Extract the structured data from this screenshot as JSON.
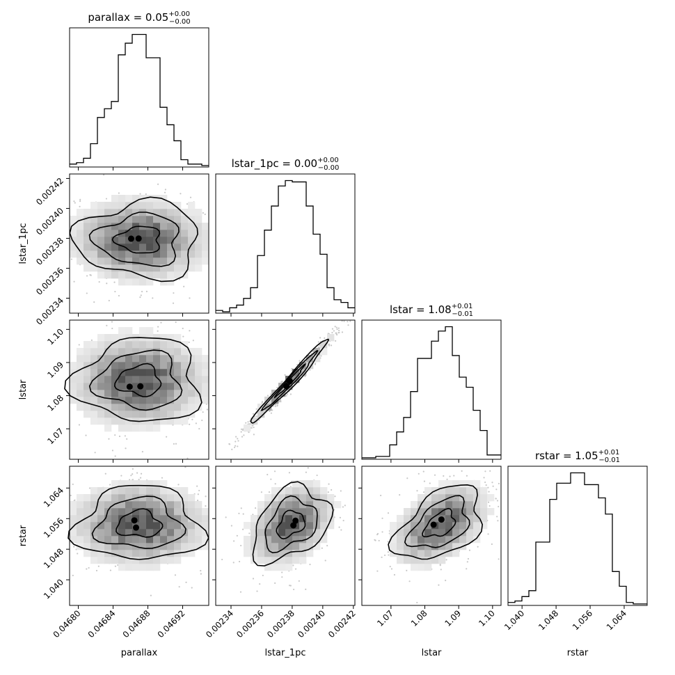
{
  "figure": {
    "type": "corner_plot",
    "grid": false,
    "colors": {
      "line": "#000000",
      "background": "#ffffff",
      "density": "#000000"
    }
  },
  "chart_data": [
    {
      "id": "hist-parallax",
      "type": "histogram",
      "variable": "parallax",
      "title_main": "parallax = 0.05",
      "title_sup": "+0.00",
      "title_sub": "−0.00",
      "xlim": [
        0.04679,
        0.04695
      ],
      "xticks": [
        0.0468,
        0.04684,
        0.04688,
        0.04692
      ],
      "xtick_labels": [
        "0.04680",
        "0.04684",
        "0.04688",
        "0.04692"
      ],
      "bins": [
        0.04679,
        0.046798,
        0.046806,
        0.046814,
        0.046822,
        0.04683,
        0.046838,
        0.046846,
        0.046854,
        0.046862,
        0.04687,
        0.046878,
        0.046886,
        0.046894,
        0.046902,
        0.04691,
        0.046918,
        0.046926,
        0.046934,
        0.046942,
        0.04695
      ],
      "counts": [
        2,
        3,
        6,
        16,
        34,
        40,
        45,
        77,
        85,
        91,
        91,
        75,
        75,
        41,
        29,
        18,
        5,
        2,
        2,
        1
      ]
    },
    {
      "id": "hist-lstar_1pc",
      "type": "histogram",
      "variable": "lstar_1pc",
      "title_main": "lstar_1pc = 0.00",
      "title_sup": "+0.00",
      "title_sub": "−0.00",
      "xlim": [
        0.00233,
        0.002421
      ],
      "xticks": [
        0.00234,
        0.00236,
        0.00238,
        0.0024,
        0.00242
      ],
      "xtick_labels": [
        "0.00234",
        "0.00236",
        "0.00238",
        "0.00240",
        "0.00242"
      ],
      "bins": [
        0.00233,
        0.00233455,
        0.0023391,
        0.00234365,
        0.0023482,
        0.00235275,
        0.0023573,
        0.00236185,
        0.0023664,
        0.00237095,
        0.0023755,
        0.00238005,
        0.0023846,
        0.00238915,
        0.0023937,
        0.00239825,
        0.0024028,
        0.00240735,
        0.0024119,
        0.00241645,
        0.002421
      ],
      "counts": [
        2,
        1,
        4,
        6,
        11,
        19,
        43,
        62,
        80,
        95,
        99,
        98,
        98,
        80,
        59,
        44,
        19,
        10,
        8,
        4
      ]
    },
    {
      "id": "hist-lstar",
      "type": "histogram",
      "variable": "lstar",
      "title_main": "lstar = 1.08",
      "title_sup": "+0.01",
      "title_sub": "−0.01",
      "xlim": [
        1.0614,
        1.1025
      ],
      "xticks": [
        1.07,
        1.08,
        1.09,
        1.1
      ],
      "xtick_labels": [
        "1.07",
        "1.08",
        "1.09",
        "1.10"
      ],
      "bins": [
        1.0614,
        1.063455,
        1.06551,
        1.067565,
        1.06962,
        1.071675,
        1.07373,
        1.075785,
        1.07784,
        1.079895,
        1.08195,
        1.084005,
        1.08606,
        1.088115,
        1.09017,
        1.092225,
        1.09428,
        1.096335,
        1.09839,
        1.100445,
        1.1025
      ],
      "counts": [
        1,
        1,
        2,
        2,
        10,
        19,
        29,
        47,
        70,
        70,
        82,
        89,
        92,
        72,
        57,
        50,
        34,
        20,
        3,
        3
      ]
    },
    {
      "id": "hist-rstar",
      "type": "histogram",
      "variable": "rstar",
      "title_main": "rstar = 1.05",
      "title_sup": "+0.01",
      "title_sub": "−0.01",
      "xlim": [
        1.0367,
        1.0694
      ],
      "xticks": [
        1.04,
        1.048,
        1.056,
        1.064
      ],
      "xtick_labels": [
        "1.040",
        "1.048",
        "1.056",
        "1.064"
      ],
      "bins": [
        1.0367,
        1.038335,
        1.03997,
        1.041605,
        1.04324,
        1.044875,
        1.04651,
        1.048145,
        1.04978,
        1.051415,
        1.05305,
        1.054685,
        1.05632,
        1.057955,
        1.05959,
        1.061225,
        1.06286,
        1.064495,
        1.06613,
        1.067765,
        1.0694
      ],
      "counts": [
        2,
        3,
        6,
        10,
        43,
        43,
        72,
        83,
        83,
        90,
        90,
        82,
        82,
        73,
        62,
        23,
        13,
        2,
        1,
        1
      ]
    },
    {
      "id": "joint-parallax-lstar_1pc",
      "type": "contour_density",
      "x_variable": "parallax",
      "y_variable": "lstar_1pc",
      "xlim": [
        0.04679,
        0.04695
      ],
      "ylim": [
        0.00233,
        0.002423
      ],
      "yticks": [
        0.00234,
        0.00236,
        0.00238,
        0.0024,
        0.00242
      ],
      "ytick_labels": [
        "0.00234",
        "0.00236",
        "0.00238",
        "0.00240",
        "0.00242"
      ],
      "center": [
        0.04687,
        0.002379
      ],
      "spread": [
        3.8e-05,
        1.35e-05
      ],
      "correlation": 0.0
    },
    {
      "id": "joint-parallax-lstar",
      "type": "contour_density",
      "x_variable": "parallax",
      "y_variable": "lstar",
      "xlim": [
        0.04679,
        0.04695
      ],
      "ylim": [
        1.0608,
        1.1028
      ],
      "yticks": [
        1.07,
        1.08,
        1.09,
        1.1
      ],
      "ytick_labels": [
        "1.07",
        "1.08",
        "1.09",
        "1.10"
      ],
      "center": [
        0.04687,
        1.0845
      ],
      "spread": [
        3.8e-05,
        0.0068
      ],
      "correlation": 0.0
    },
    {
      "id": "joint-lstar_1pc-lstar",
      "type": "contour_density",
      "x_variable": "lstar_1pc",
      "y_variable": "lstar",
      "xlim": [
        0.00233,
        0.002421
      ],
      "ylim": [
        1.0608,
        1.1028
      ],
      "center": [
        0.002379,
        1.0845
      ],
      "spread": [
        1.35e-05,
        0.0068
      ],
      "correlation": 0.985
    },
    {
      "id": "joint-parallax-rstar",
      "type": "contour_density",
      "x_variable": "parallax",
      "y_variable": "rstar",
      "xlim": [
        0.04679,
        0.04695
      ],
      "ylim": [
        1.0333,
        1.0697
      ],
      "yticks": [
        1.04,
        1.048,
        1.056,
        1.064
      ],
      "ytick_labels": [
        "1.040",
        "1.048",
        "1.056",
        "1.064"
      ],
      "center": [
        0.04687,
        1.0545
      ],
      "spread": [
        3.8e-05,
        0.0052
      ],
      "correlation": 0.0
    },
    {
      "id": "joint-lstar_1pc-rstar",
      "type": "contour_density",
      "x_variable": "lstar_1pc",
      "y_variable": "rstar",
      "xlim": [
        0.00233,
        0.002421
      ],
      "ylim": [
        1.0333,
        1.0697
      ],
      "center": [
        0.002379,
        1.0545
      ],
      "spread": [
        1.35e-05,
        0.0052
      ],
      "correlation": 0.35
    },
    {
      "id": "joint-lstar-rstar",
      "type": "contour_density",
      "x_variable": "lstar",
      "y_variable": "rstar",
      "xlim": [
        1.0614,
        1.1025
      ],
      "ylim": [
        1.0333,
        1.0697
      ],
      "center": [
        1.0845,
        1.0545
      ],
      "spread": [
        0.0068,
        0.0052
      ],
      "correlation": 0.45
    }
  ],
  "axis_labels": {
    "x": [
      "parallax",
      "lstar_1pc",
      "lstar",
      "rstar"
    ],
    "y": [
      "lstar_1pc",
      "lstar",
      "rstar"
    ]
  }
}
